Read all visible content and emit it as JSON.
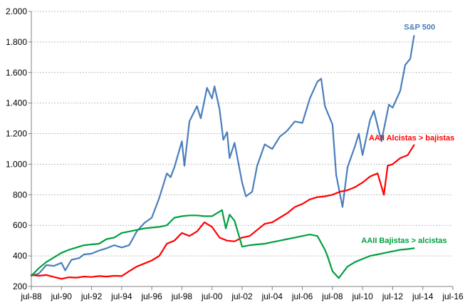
{
  "chart_data": {
    "type": "line",
    "title": "",
    "xlabel": "",
    "ylabel": "",
    "ylim": [
      200,
      2000
    ],
    "xlim": [
      "1988-07",
      "2016-07"
    ],
    "grid": {
      "y": true,
      "x": false
    },
    "colors": {
      "sp500": "#4A7EBB",
      "bulls": "#FF0000",
      "bears": "#00A040",
      "grid": "#BFBFBF"
    },
    "y_ticks": [
      200,
      400,
      600,
      800,
      1000,
      1200,
      1400,
      1600,
      1800,
      2000
    ],
    "y_tick_labels": [
      "200",
      "400",
      "600",
      "800",
      "1.000",
      "1.200",
      "1.400",
      "1.600",
      "1.800",
      "2.000"
    ],
    "x_ticks": [
      "1988-07",
      "1990-07",
      "1992-07",
      "1994-07",
      "1996-07",
      "1998-07",
      "2000-07",
      "2002-07",
      "2004-07",
      "2006-07",
      "2008-07",
      "2010-07",
      "2012-07",
      "2014-07",
      "2016-07"
    ],
    "x_tick_labels": [
      "jul-88",
      "jul-90",
      "jul-92",
      "jul-94",
      "jul-96",
      "jul-98",
      "jul-00",
      "jul-02",
      "jul-04",
      "jul-06",
      "jul-08",
      "jul-10",
      "jul-12",
      "jul-14",
      "jul-16"
    ],
    "series": [
      {
        "id": "sp500",
        "name": "S&P 500",
        "color": "#4A7EBB",
        "points": [
          [
            "1988-07",
            270
          ],
          [
            "1989-01",
            285
          ],
          [
            "1989-07",
            340
          ],
          [
            "1990-01",
            335
          ],
          [
            "1990-07",
            355
          ],
          [
            "1990-10",
            305
          ],
          [
            "1991-03",
            375
          ],
          [
            "1991-09",
            385
          ],
          [
            "1992-01",
            410
          ],
          [
            "1992-07",
            415
          ],
          [
            "1993-01",
            435
          ],
          [
            "1993-07",
            450
          ],
          [
            "1994-01",
            470
          ],
          [
            "1994-07",
            455
          ],
          [
            "1995-01",
            470
          ],
          [
            "1995-07",
            560
          ],
          [
            "1996-01",
            615
          ],
          [
            "1996-07",
            650
          ],
          [
            "1997-01",
            780
          ],
          [
            "1997-07",
            940
          ],
          [
            "1997-10",
            915
          ],
          [
            "1998-01",
            980
          ],
          [
            "1998-07",
            1150
          ],
          [
            "1998-09",
            990
          ],
          [
            "1999-01",
            1280
          ],
          [
            "1999-07",
            1380
          ],
          [
            "1999-10",
            1300
          ],
          [
            "2000-03",
            1500
          ],
          [
            "2000-07",
            1430
          ],
          [
            "2000-09",
            1510
          ],
          [
            "2001-01",
            1360
          ],
          [
            "2001-04",
            1160
          ],
          [
            "2001-07",
            1210
          ],
          [
            "2001-09",
            1040
          ],
          [
            "2002-01",
            1140
          ],
          [
            "2002-07",
            880
          ],
          [
            "2002-10",
            790
          ],
          [
            "2003-03",
            820
          ],
          [
            "2003-07",
            990
          ],
          [
            "2004-01",
            1130
          ],
          [
            "2004-07",
            1100
          ],
          [
            "2005-01",
            1180
          ],
          [
            "2005-07",
            1220
          ],
          [
            "2006-01",
            1280
          ],
          [
            "2006-07",
            1270
          ],
          [
            "2007-01",
            1430
          ],
          [
            "2007-07",
            1540
          ],
          [
            "2007-10",
            1560
          ],
          [
            "2008-01",
            1380
          ],
          [
            "2008-07",
            1260
          ],
          [
            "2008-10",
            930
          ],
          [
            "2009-03",
            720
          ],
          [
            "2009-07",
            980
          ],
          [
            "2010-01",
            1120
          ],
          [
            "2010-04",
            1200
          ],
          [
            "2010-07",
            1060
          ],
          [
            "2011-01",
            1290
          ],
          [
            "2011-04",
            1350
          ],
          [
            "2011-10",
            1150
          ],
          [
            "2012-04",
            1390
          ],
          [
            "2012-07",
            1370
          ],
          [
            "2013-01",
            1480
          ],
          [
            "2013-05",
            1650
          ],
          [
            "2013-09",
            1690
          ],
          [
            "2013-12",
            1840
          ]
        ]
      },
      {
        "id": "bulls",
        "name": "AAII Alcistas > bajistas",
        "color": "#FF0000",
        "points": [
          [
            "1988-07",
            275
          ],
          [
            "1989-01",
            270
          ],
          [
            "1989-07",
            275
          ],
          [
            "1990-01",
            262
          ],
          [
            "1990-07",
            250
          ],
          [
            "1991-01",
            260
          ],
          [
            "1991-07",
            258
          ],
          [
            "1992-01",
            265
          ],
          [
            "1992-07",
            262
          ],
          [
            "1993-01",
            268
          ],
          [
            "1993-07",
            265
          ],
          [
            "1994-01",
            270
          ],
          [
            "1994-07",
            268
          ],
          [
            "1995-01",
            300
          ],
          [
            "1995-07",
            330
          ],
          [
            "1996-01",
            350
          ],
          [
            "1996-07",
            370
          ],
          [
            "1997-01",
            400
          ],
          [
            "1997-07",
            480
          ],
          [
            "1998-01",
            500
          ],
          [
            "1998-07",
            550
          ],
          [
            "1999-01",
            530
          ],
          [
            "1999-07",
            560
          ],
          [
            "2000-01",
            620
          ],
          [
            "2000-07",
            590
          ],
          [
            "2001-01",
            520
          ],
          [
            "2001-07",
            500
          ],
          [
            "2002-01",
            495
          ],
          [
            "2002-07",
            520
          ],
          [
            "2003-01",
            530
          ],
          [
            "2003-07",
            570
          ],
          [
            "2004-01",
            610
          ],
          [
            "2004-07",
            620
          ],
          [
            "2005-01",
            650
          ],
          [
            "2005-07",
            680
          ],
          [
            "2006-01",
            720
          ],
          [
            "2006-07",
            740
          ],
          [
            "2007-01",
            770
          ],
          [
            "2007-07",
            785
          ],
          [
            "2008-01",
            790
          ],
          [
            "2008-07",
            800
          ],
          [
            "2009-01",
            820
          ],
          [
            "2009-07",
            830
          ],
          [
            "2010-01",
            850
          ],
          [
            "2010-07",
            880
          ],
          [
            "2011-01",
            920
          ],
          [
            "2011-07",
            940
          ],
          [
            "2011-12",
            800
          ],
          [
            "2012-03",
            990
          ],
          [
            "2012-07",
            1000
          ],
          [
            "2013-01",
            1040
          ],
          [
            "2013-07",
            1060
          ],
          [
            "2013-12",
            1125
          ]
        ]
      },
      {
        "id": "bears",
        "name": "AAII Bajistas > alcistas",
        "color": "#00A040",
        "points": [
          [
            "1988-07",
            270
          ],
          [
            "1989-01",
            320
          ],
          [
            "1989-07",
            360
          ],
          [
            "1990-01",
            390
          ],
          [
            "1990-07",
            420
          ],
          [
            "1991-01",
            440
          ],
          [
            "1991-07",
            455
          ],
          [
            "1992-01",
            470
          ],
          [
            "1992-07",
            475
          ],
          [
            "1993-01",
            480
          ],
          [
            "1993-07",
            510
          ],
          [
            "1994-01",
            520
          ],
          [
            "1994-07",
            550
          ],
          [
            "1995-01",
            560
          ],
          [
            "1995-07",
            570
          ],
          [
            "1996-01",
            580
          ],
          [
            "1996-07",
            585
          ],
          [
            "1997-01",
            590
          ],
          [
            "1997-07",
            600
          ],
          [
            "1998-01",
            650
          ],
          [
            "1998-07",
            660
          ],
          [
            "1999-01",
            665
          ],
          [
            "1999-07",
            665
          ],
          [
            "2000-01",
            660
          ],
          [
            "2000-07",
            660
          ],
          [
            "2001-01",
            690
          ],
          [
            "2001-03",
            700
          ],
          [
            "2001-06",
            580
          ],
          [
            "2001-09",
            670
          ],
          [
            "2002-01",
            630
          ],
          [
            "2002-07",
            460
          ],
          [
            "2003-01",
            470
          ],
          [
            "2003-07",
            475
          ],
          [
            "2004-01",
            480
          ],
          [
            "2004-07",
            490
          ],
          [
            "2005-01",
            500
          ],
          [
            "2005-07",
            510
          ],
          [
            "2006-01",
            520
          ],
          [
            "2006-07",
            530
          ],
          [
            "2007-01",
            540
          ],
          [
            "2007-07",
            530
          ],
          [
            "2008-01",
            440
          ],
          [
            "2008-03",
            400
          ],
          [
            "2008-07",
            300
          ],
          [
            "2008-12",
            255
          ],
          [
            "2009-07",
            330
          ],
          [
            "2010-01",
            360
          ],
          [
            "2010-07",
            380
          ],
          [
            "2011-01",
            400
          ],
          [
            "2011-07",
            410
          ],
          [
            "2012-01",
            420
          ],
          [
            "2012-07",
            430
          ],
          [
            "2013-01",
            440
          ],
          [
            "2013-07",
            445
          ],
          [
            "2013-12",
            450
          ]
        ]
      }
    ],
    "annotations": [
      {
        "series": "sp500",
        "text": "S&P 500",
        "at": [
          "2013-04",
          1880
        ]
      },
      {
        "series": "bulls",
        "text": "AAII Alcistas > bajistas",
        "at": [
          "2010-12",
          1155
        ]
      },
      {
        "series": "bears",
        "text": "AAII Bajistas > alcistas",
        "at": [
          "2010-06",
          485
        ]
      }
    ]
  }
}
